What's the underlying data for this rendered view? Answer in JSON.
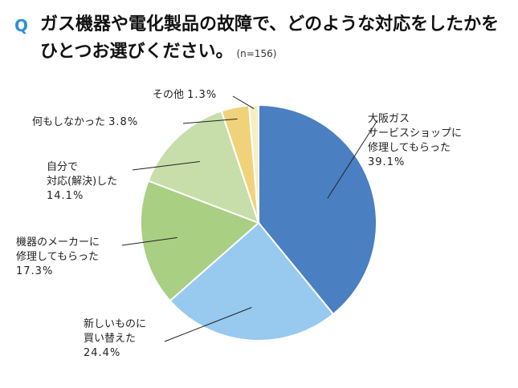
{
  "title": {
    "q_mark": "Q",
    "text": "ガス機器や電化製品の故障で、どのような対応をしたかをひとつお選びください。",
    "note": "(n=156)"
  },
  "chart_data": {
    "type": "pie",
    "slices": [
      {
        "label": "大阪ガス\nサービスショップに\n修理してもらった",
        "value": 39.1,
        "value_text": "39.1%",
        "color": "#4a7fc1"
      },
      {
        "label": "新しいものに\n買い替えた",
        "value": 24.4,
        "value_text": "24.4%",
        "color": "#98c9ee"
      },
      {
        "label": "機器のメーカーに\n修理してもらった",
        "value": 17.3,
        "value_text": "17.3%",
        "color": "#a9cf82"
      },
      {
        "label": "自分で\n対応(解決)した",
        "value": 14.1,
        "value_text": "14.1%",
        "color": "#c7deaa"
      },
      {
        "label": "何もしなかった",
        "value": 3.8,
        "value_text": "3.8%",
        "color": "#f0d27a"
      },
      {
        "label": "その他",
        "value": 1.3,
        "value_text": "1.3%",
        "color": "#f7efc4"
      }
    ]
  }
}
